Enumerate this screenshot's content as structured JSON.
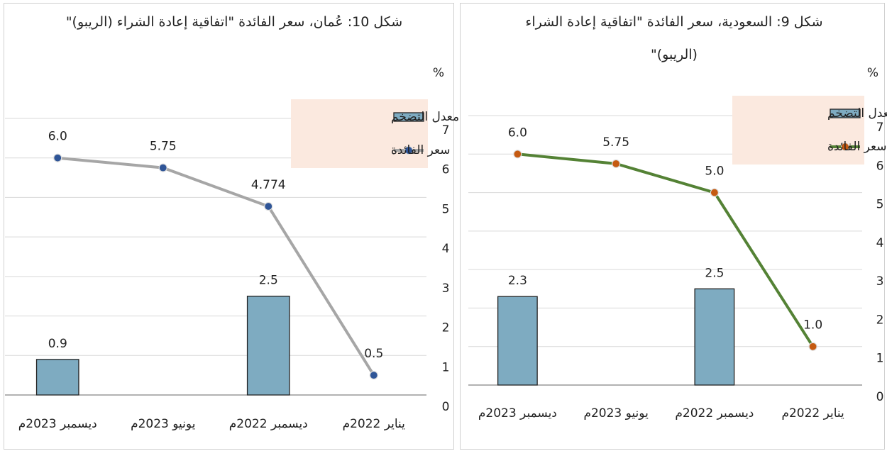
{
  "chart_data": [
    {
      "type": "combo",
      "title": "شكل 10: عُمان، سعر الفائدة \"اتفاقية إعادة الشراء (الريبو)\"",
      "y_unit": "%",
      "categories": [
        "يناير 2022م",
        "ديسمبر 2022م",
        "يونيو 2023م",
        "ديسمبر 2023م"
      ],
      "x_reversed": true,
      "ylim": [
        0,
        7
      ],
      "yticks": [
        0,
        1,
        2,
        3,
        4,
        5,
        6,
        7
      ],
      "grid": true,
      "legend": "top-right",
      "series": [
        {
          "name": "معدل التضخم",
          "type": "bar",
          "color": "#7eabc1",
          "values": [
            null,
            2.5,
            null,
            0.9
          ]
        },
        {
          "name": "سعر الفائدة",
          "type": "line",
          "color": "#a6a6a6",
          "marker_color": "#2f5597",
          "values": [
            0.5,
            4.774,
            5.75,
            6
          ],
          "value_labels": [
            "0.5",
            "4.774",
            "5.75",
            "6.0"
          ]
        }
      ]
    },
    {
      "type": "combo",
      "title": "شكل 9: السعودية، سعر الفائدة \"اتفاقية إعادة الشراء (الريبو)\"",
      "y_unit": "%",
      "categories": [
        "يناير 2022م",
        "ديسمبر 2022م",
        "يونيو 2023م",
        "ديسمبر 2023م"
      ],
      "x_reversed": true,
      "ylim": [
        0,
        7
      ],
      "yticks": [
        0,
        1,
        2,
        3,
        4,
        5,
        6,
        7
      ],
      "grid": true,
      "legend": "top-right",
      "series": [
        {
          "name": "معدل التضخم",
          "type": "bar",
          "color": "#7eabc1",
          "values": [
            null,
            2.5,
            null,
            2.3
          ]
        },
        {
          "name": "سعر الفائدة",
          "type": "line",
          "color": "#548235",
          "marker_color": "#c55a11",
          "values": [
            1,
            5,
            5.75,
            6
          ],
          "value_labels": [
            "1.0",
            "5.0",
            "5.75",
            "6.0"
          ]
        }
      ]
    }
  ]
}
